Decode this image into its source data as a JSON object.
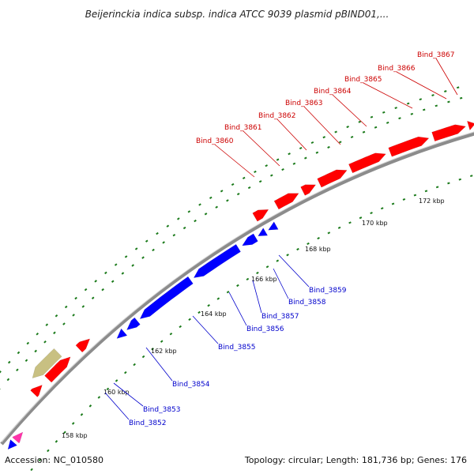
{
  "title": "Beijerinckia indica subsp. indica ATCC 9039 plasmid pBIND01,...",
  "footer": {
    "accession": "Accession: NC_010580",
    "summary": "Topology: circular; Length: 181,736 bp; Genes: 176"
  },
  "colors": {
    "forward": "#ff0000",
    "reverse": "#0000ff",
    "forward_label": "#cc0000",
    "reverse_label": "#0000cc",
    "backbone": "#8c8c8c",
    "ticks": "#1a7a1a",
    "olive_feature": "#c8c082",
    "pink_feature": "#ff33aa"
  },
  "tick_labels": [
    "158 kbp",
    "160 kbp",
    "162 kbp",
    "164 kbp",
    "166 kbp",
    "168 kbp",
    "170 kbp",
    "172 kbp"
  ],
  "forward_genes": [
    "Bind_3860",
    "Bind_3861",
    "Bind_3862",
    "Bind_3863",
    "Bind_3864",
    "Bind_3865",
    "Bind_3866",
    "Bind_3867"
  ],
  "reverse_genes": [
    "Bind_3852",
    "Bind_3853",
    "Bind_3854",
    "Bind_3855",
    "Bind_3856",
    "Bind_3857",
    "Bind_3858",
    "Bind_3859"
  ]
}
